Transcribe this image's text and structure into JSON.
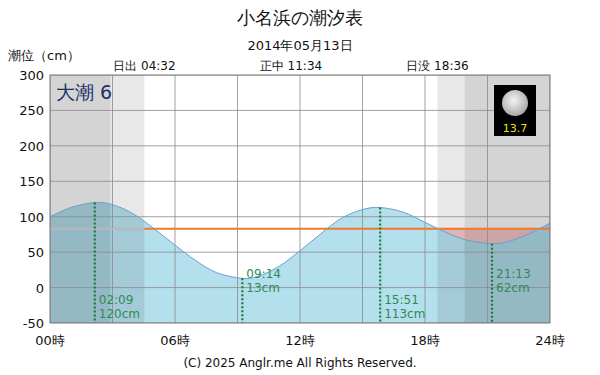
{
  "chart_data": {
    "type": "area",
    "title": "小名浜の潮汐表",
    "subtitle": "2014年05月13日",
    "y_label": "潮位（cm）",
    "x": [
      0,
      1,
      2.15,
      3,
      4,
      5,
      6,
      7,
      8,
      9.233,
      10,
      11,
      12,
      13,
      14,
      15,
      15.85,
      17,
      18,
      19,
      20,
      21.217,
      22,
      23,
      24
    ],
    "values": [
      100,
      113,
      120,
      117,
      104,
      83,
      60,
      38,
      21,
      13,
      16,
      30,
      52,
      76,
      98,
      110,
      113,
      106,
      92,
      78,
      67,
      62,
      65,
      76,
      91
    ],
    "color": "#b4dfec",
    "xlim": [
      0,
      24
    ],
    "ylim": [
      -50,
      300
    ],
    "xticks": [
      {
        "value": 0,
        "label": "00時"
      },
      {
        "value": 6,
        "label": "06時"
      },
      {
        "value": 12,
        "label": "12時"
      },
      {
        "value": 18,
        "label": "18時"
      },
      {
        "value": 24,
        "label": "24時"
      }
    ],
    "x_minor_ticks": [
      3,
      9,
      15,
      21
    ],
    "yticks": [
      -50,
      0,
      50,
      100,
      150,
      200,
      250,
      300
    ],
    "grid": true,
    "sun": [
      {
        "label": "日出 04:32",
        "x": 4.533
      },
      {
        "label": "正中 11:34",
        "x": 11.567
      },
      {
        "label": "日没 18:36",
        "x": 18.6
      }
    ],
    "twilight": [
      2.9,
      19.9
    ],
    "mean_level": 83,
    "tide_name": "大潮 6",
    "moon_age": 13.7,
    "extremes": {
      "x": [
        2.15,
        9.233,
        15.85,
        21.217
      ],
      "labels": [
        "02:09",
        "09:14",
        "15:51",
        "21:13"
      ],
      "values": [
        120,
        13,
        113,
        62
      ],
      "value_labels": [
        "120cm",
        "13cm",
        "113cm",
        "62cm"
      ]
    },
    "copyright": "(C) 2025 Anglr.me All Rights Reserved."
  }
}
